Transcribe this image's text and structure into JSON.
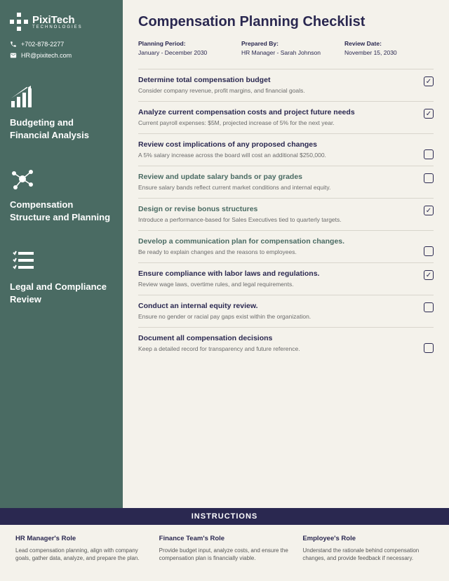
{
  "company": {
    "name": "PixiTech",
    "sub": "TECHNOLOGIES"
  },
  "contact": {
    "phone": "+702-878-2277",
    "email": "HR@pixitech.com"
  },
  "title": "Compensation Planning Checklist",
  "meta": [
    {
      "label": "Planning Period:",
      "value": "January - December 2030"
    },
    {
      "label": "Prepared By:",
      "value": "HR Manager - Sarah Johnson"
    },
    {
      "label": "Review Date:",
      "value": "November 15, 2030"
    }
  ],
  "sections": [
    {
      "title": "Budgeting and Financial Analysis"
    },
    {
      "title": "Compensation Structure and Planning"
    },
    {
      "title": "Legal and Compliance Review"
    }
  ],
  "items": [
    {
      "title": "Determine total compensation budget",
      "desc": "Consider company revenue, profit margins, and financial goals.",
      "checked": true,
      "alt": false,
      "low": false
    },
    {
      "title": "Analyze current compensation costs and project future needs",
      "desc": "Current payroll expenses: $5M, projected increase of 5% for the next year.",
      "checked": true,
      "alt": false,
      "low": false
    },
    {
      "title": "Review cost implications of any proposed changes",
      "desc": "A 5% salary increase across the board will cost an additional $250,000.",
      "checked": false,
      "alt": false,
      "low": true
    },
    {
      "title": "Review and update salary bands or pay grades",
      "desc": "Ensure salary bands reflect current market conditions and internal equity.",
      "checked": false,
      "alt": true,
      "low": false
    },
    {
      "title": "Design or revise bonus structures",
      "desc": "Introduce a performance-based for Sales Executives tied to quarterly targets.",
      "checked": true,
      "alt": true,
      "low": false
    },
    {
      "title": "Develop a communication plan for compensation changes.",
      "desc": "Be ready to explain changes and the reasons to employees.",
      "checked": false,
      "alt": true,
      "low": true
    },
    {
      "title": "Ensure compliance with labor laws and regulations.",
      "desc": "Review wage laws, overtime rules, and legal requirements.",
      "checked": true,
      "alt": false,
      "low": false
    },
    {
      "title": "Conduct an internal equity review.",
      "desc": "Ensure no gender or racial pay gaps exist within the organization.",
      "checked": false,
      "alt": false,
      "low": false
    },
    {
      "title": "Document all compensation decisions",
      "desc": "Keep a detailed record for transparency and future reference.",
      "checked": false,
      "alt": false,
      "low": true
    }
  ],
  "instrBar": "INSTRUCTIONS",
  "instructions": [
    {
      "title": "HR Manager's Role",
      "text": "Lead compensation planning, align with company goals, gather data, analyze, and prepare the plan."
    },
    {
      "title": "Finance Team's Role",
      "text": "Provide budget input, analyze costs, and ensure the compensation plan is financially viable."
    },
    {
      "title": "Employee's Role",
      "text": "Understand the rationale behind compensation changes, and provide feedback if necessary."
    }
  ]
}
